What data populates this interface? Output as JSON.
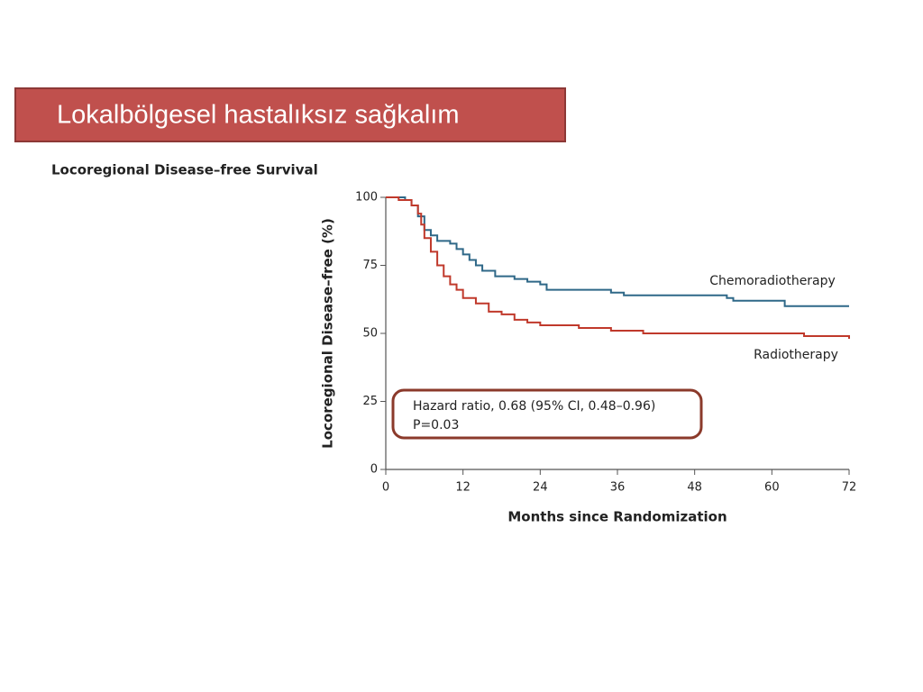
{
  "banner": "Lokalbölgesel hastalıksız sağkalım",
  "chart_data": {
    "type": "line",
    "step": true,
    "title": "Locoregional Disease–free Survival",
    "xlabel": "Months since Randomization",
    "ylabel": "Locoregional Disease–free (%)",
    "xlim": [
      0,
      72
    ],
    "ylim": [
      0,
      100
    ],
    "xticks": [
      0,
      12,
      24,
      36,
      48,
      60,
      72
    ],
    "yticks": [
      0,
      25,
      50,
      75,
      100
    ],
    "series": [
      {
        "name": "Chemoradiotherapy",
        "color": "#2f6888",
        "x": [
          0,
          3,
          4,
          5,
          6,
          7,
          8,
          10,
          11,
          12,
          13,
          14,
          15,
          17,
          20,
          22,
          24,
          25,
          35,
          37,
          53,
          54,
          62,
          72
        ],
        "values": [
          100,
          99,
          97,
          93,
          88,
          86,
          84,
          83,
          81,
          79,
          77,
          75,
          73,
          71,
          70,
          69,
          68,
          66,
          65,
          64,
          63,
          62,
          60,
          60
        ]
      },
      {
        "name": "Radiotherapy",
        "color": "#c0392b",
        "x": [
          0,
          2,
          4,
          5,
          5.5,
          6,
          7,
          8,
          9,
          10,
          11,
          12,
          14,
          16,
          18,
          20,
          22,
          24,
          30,
          35,
          40,
          65,
          72
        ],
        "values": [
          100,
          99,
          97,
          94,
          90,
          85,
          80,
          75,
          71,
          68,
          66,
          63,
          61,
          58,
          57,
          55,
          54,
          53,
          52,
          51,
          50,
          49,
          48
        ]
      }
    ],
    "annotations": [
      "Hazard ratio, 0.68 (95% CI, 0.48–0.96)",
      "P=0.03"
    ]
  }
}
